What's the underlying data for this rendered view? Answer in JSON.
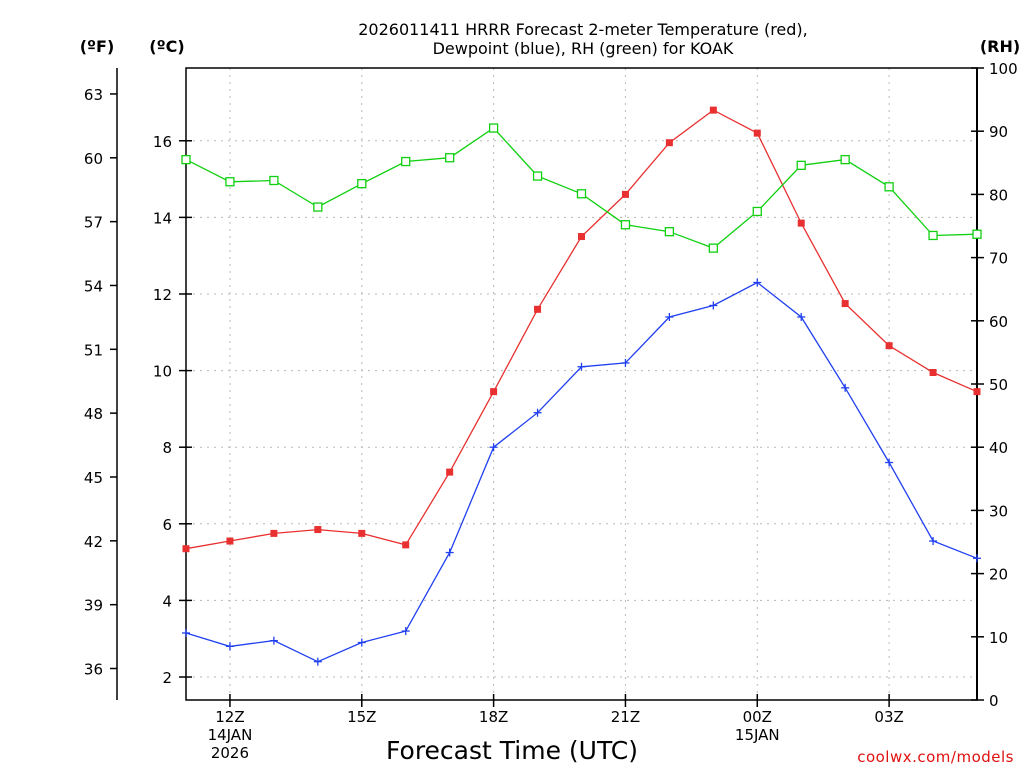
{
  "chart_data": {
    "type": "line",
    "title_line1": "2026011411 HRRR Forecast 2-meter Temperature (red),",
    "title_line2": "Dewpoint (blue), RH (green) for KOAK",
    "xlabel": "Forecast Time (UTC)",
    "credit": "coolwx.com/models",
    "unit_labels": {
      "fahrenheit": "(ºF)",
      "celsius": "(ºC)",
      "rh": "(RH)"
    },
    "x_hours": [
      11,
      12,
      13,
      14,
      15,
      16,
      17,
      18,
      19,
      20,
      21,
      22,
      23,
      24,
      25,
      26,
      27,
      28,
      29
    ],
    "x_ticks": [
      {
        "hour": 12,
        "lines": [
          "12Z",
          "14JAN",
          "2026"
        ]
      },
      {
        "hour": 15,
        "lines": [
          "15Z"
        ]
      },
      {
        "hour": 18,
        "lines": [
          "18Z"
        ]
      },
      {
        "hour": 21,
        "lines": [
          "21Z"
        ]
      },
      {
        "hour": 24,
        "lines": [
          "00Z",
          "15JAN"
        ]
      },
      {
        "hour": 27,
        "lines": [
          "03Z"
        ]
      }
    ],
    "celsius_axis": {
      "range": [
        1.4,
        17.9
      ],
      "ticks": [
        2,
        4,
        6,
        8,
        10,
        12,
        14,
        16
      ]
    },
    "fahrenheit_ticks": [
      36,
      39,
      42,
      45,
      48,
      51,
      54,
      57,
      60,
      63
    ],
    "rh_axis": {
      "range": [
        0,
        100
      ],
      "ticks": [
        0,
        10,
        20,
        30,
        40,
        50,
        60,
        70,
        80,
        90,
        100
      ]
    },
    "series": [
      {
        "name": "Temperature",
        "unit": "C",
        "color": "#e83030",
        "marker": "filled-square",
        "values": [
          5.35,
          5.55,
          5.75,
          5.85,
          5.75,
          5.45,
          7.35,
          9.45,
          11.6,
          13.5,
          14.6,
          15.95,
          16.8,
          16.2,
          13.85,
          11.75,
          10.65,
          9.95,
          9.45
        ]
      },
      {
        "name": "Dewpoint",
        "unit": "C",
        "color": "#2040f0",
        "marker": "plus",
        "values": [
          3.15,
          2.8,
          2.95,
          2.4,
          2.9,
          3.2,
          5.25,
          8.0,
          8.9,
          10.1,
          10.2,
          11.4,
          11.7,
          12.3,
          11.4,
          9.55,
          7.6,
          5.55,
          5.1
        ]
      },
      {
        "name": "RH",
        "unit": "%",
        "color": "#10d010",
        "marker": "open-square",
        "values": [
          85.5,
          82.0,
          82.2,
          78.0,
          81.7,
          85.2,
          85.8,
          90.5,
          82.9,
          80.1,
          75.2,
          74.1,
          71.5,
          77.3,
          84.6,
          85.5,
          81.2,
          73.5,
          73.7
        ]
      }
    ]
  }
}
